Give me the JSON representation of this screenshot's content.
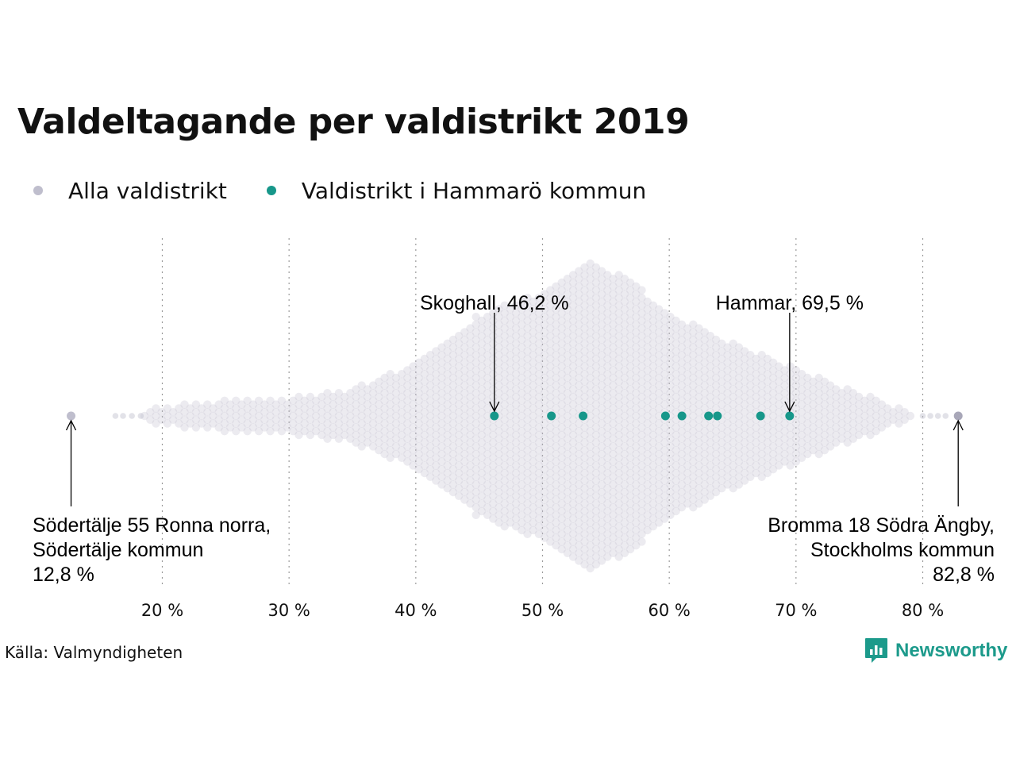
{
  "chart_data": {
    "type": "scatter",
    "subtype": "beeswarm",
    "title": "Valdeltagande per valdistrikt 2019",
    "xlim": [
      12,
      84
    ],
    "x_ticks": [
      20,
      30,
      40,
      50,
      60,
      70,
      80
    ],
    "x_tick_labels": [
      "20 %",
      "30 %",
      "40 %",
      "50 %",
      "60 %",
      "70 %",
      "80 %"
    ],
    "grid": "vertical-dotted",
    "legend_position": "top-left",
    "series": [
      {
        "name": "Alla valdistrikt",
        "color": "#bfbecd",
        "distribution": {
          "min": 12.8,
          "max": 82.8,
          "peak": 53.7
        }
      },
      {
        "name": "Valdistrikt i Hammarö kommun",
        "color": "#17978a",
        "values": [
          46.2,
          50.7,
          53.2,
          59.7,
          61.0,
          63.1,
          63.8,
          67.2,
          69.5
        ]
      }
    ],
    "outliers": [
      12.8,
      16.3,
      16.9,
      17.6,
      18.3,
      80.0,
      80.6,
      81.2,
      81.8
    ],
    "annotations": [
      {
        "x": 46.2,
        "lines": [
          "Skoghall, 46,2 %"
        ],
        "position": "above"
      },
      {
        "x": 69.5,
        "lines": [
          "Hammar, 69,5 %"
        ],
        "position": "above"
      },
      {
        "x": 12.8,
        "lines": [
          "Södertälje 55 Ronna norra,",
          "Södertälje kommun",
          "12,8 %"
        ],
        "position": "below-left"
      },
      {
        "x": 82.8,
        "lines": [
          "Bromma 18 Södra Ängby,",
          "Stockholms kommun",
          "82,8 %"
        ],
        "position": "below-right"
      }
    ]
  },
  "source": "Källa: Valmyndigheten",
  "brand": {
    "name": "Newsworthy",
    "color": "#1c9a8b",
    "icon": "newsworthy-logo-icon"
  }
}
